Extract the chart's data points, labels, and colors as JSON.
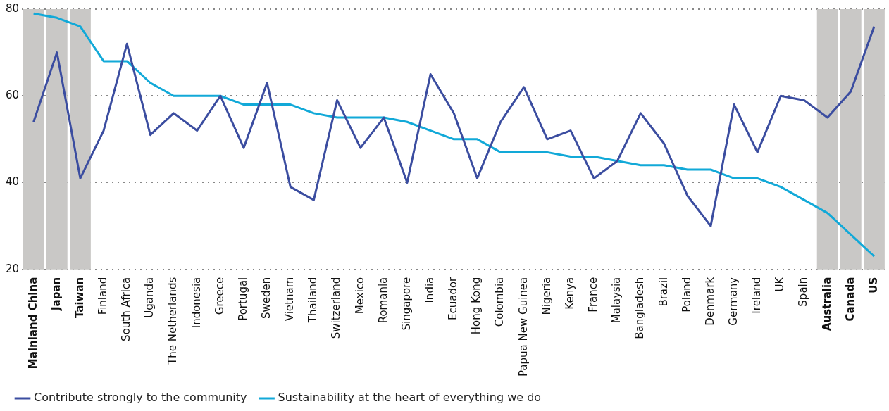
{
  "chart_data": {
    "type": "line",
    "categories": [
      "Mainland China",
      "Japan",
      "Taiwan",
      "Finland",
      "South Africa",
      "Uganda",
      "The Netherlands",
      "Indonesia",
      "Greece",
      "Portugal",
      "Sweden",
      "Vietnam",
      "Thailand",
      "Switzerland",
      "Mexico",
      "Romania",
      "Singapore",
      "India",
      "Ecuador",
      "Hong Kong",
      "Colombia",
      "Papua New Guinea",
      "Nigeria",
      "Kenya",
      "France",
      "Malaysia",
      "Bangladesh",
      "Brazil",
      "Poland",
      "Denmark",
      "Germany",
      "Ireland",
      "UK",
      "Spain",
      "Australia",
      "Canada",
      "US"
    ],
    "series": [
      {
        "name": "Contribute strongly to the community",
        "color": "#3b4da0",
        "values": [
          54,
          70,
          41,
          52,
          72,
          51,
          56,
          52,
          60,
          48,
          63,
          39,
          36,
          59,
          48,
          55,
          40,
          65,
          56,
          41,
          54,
          62,
          50,
          52,
          41,
          45,
          56,
          49,
          37,
          30,
          58,
          47,
          60,
          59,
          55,
          61,
          76
        ]
      },
      {
        "name": "Sustainability at the heart of everything we do",
        "color": "#12a9d8",
        "values": [
          79,
          78,
          76,
          68,
          68,
          63,
          60,
          60,
          60,
          58,
          58,
          58,
          56,
          55,
          55,
          55,
          54,
          52,
          50,
          50,
          47,
          47,
          47,
          46,
          46,
          45,
          44,
          44,
          43,
          43,
          41,
          41,
          39,
          36,
          33,
          28,
          23
        ]
      }
    ],
    "ylim": [
      20,
      80
    ],
    "yticks": [
      20,
      40,
      60,
      80
    ],
    "grid": "y",
    "legend": "bottom left",
    "marker": "none",
    "line_style": "solid",
    "bands": [
      {
        "axis": "x",
        "from": "Mainland China",
        "to": "Mainland China",
        "color": "#c9c8c6"
      },
      {
        "axis": "x",
        "from": "Japan",
        "to": "Japan",
        "color": "#c9c8c6"
      },
      {
        "axis": "x",
        "from": "Taiwan",
        "to": "Taiwan",
        "color": "#c9c8c6"
      },
      {
        "axis": "x",
        "from": "Australia",
        "to": "Australia",
        "color": "#c9c8c6"
      },
      {
        "axis": "x",
        "from": "Canada",
        "to": "Canada",
        "color": "#c9c8c6"
      },
      {
        "axis": "x",
        "from": "US",
        "to": "US",
        "color": "#c9c8c6"
      }
    ]
  }
}
